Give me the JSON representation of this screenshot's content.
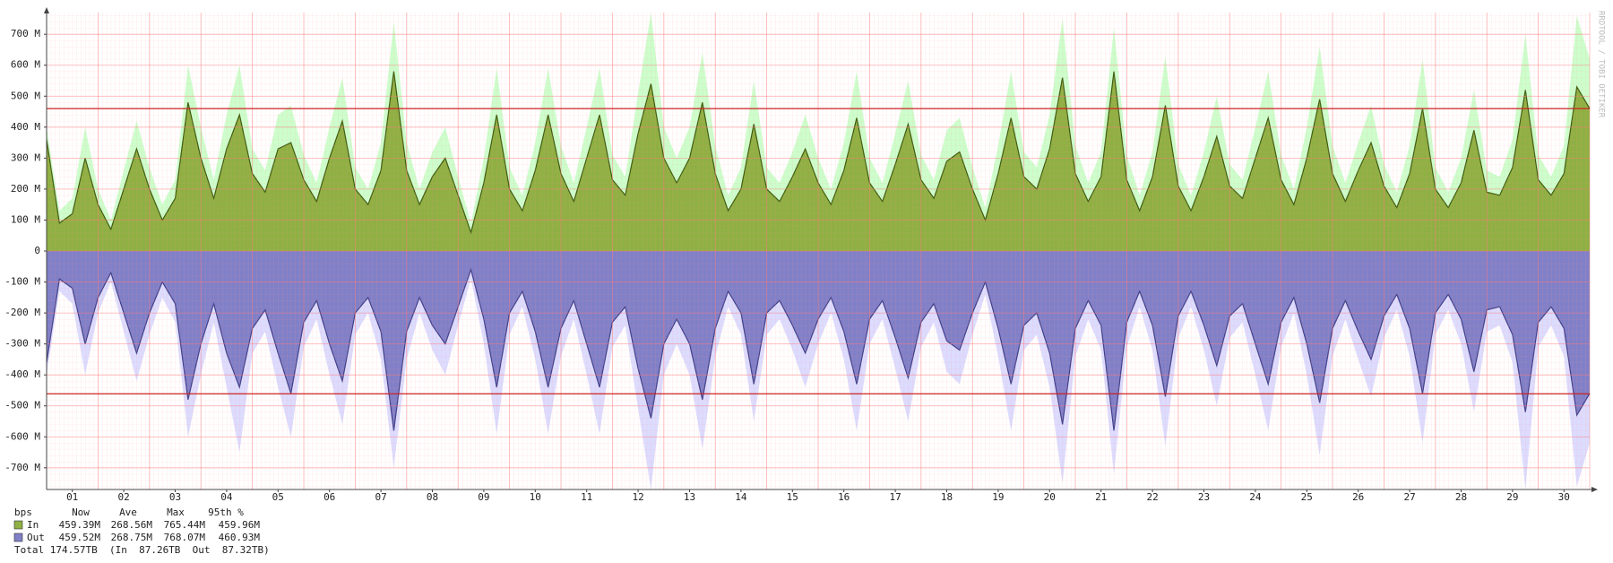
{
  "chart_data": {
    "type": "mirror-area",
    "watermark": "RRDTOOL / TOBI OETIKER",
    "xlim": [
      0,
      30
    ],
    "xticks": [
      {
        "value": 0.5,
        "label": "01"
      },
      {
        "value": 1.5,
        "label": "02"
      },
      {
        "value": 2.5,
        "label": "03"
      },
      {
        "value": 3.5,
        "label": "04"
      },
      {
        "value": 4.5,
        "label": "05"
      },
      {
        "value": 5.5,
        "label": "06"
      },
      {
        "value": 6.5,
        "label": "07"
      },
      {
        "value": 7.5,
        "label": "08"
      },
      {
        "value": 8.5,
        "label": "09"
      },
      {
        "value": 9.5,
        "label": "10"
      },
      {
        "value": 10.5,
        "label": "11"
      },
      {
        "value": 11.5,
        "label": "12"
      },
      {
        "value": 12.5,
        "label": "13"
      },
      {
        "value": 13.5,
        "label": "14"
      },
      {
        "value": 14.5,
        "label": "15"
      },
      {
        "value": 15.5,
        "label": "16"
      },
      {
        "value": 16.5,
        "label": "17"
      },
      {
        "value": 17.5,
        "label": "18"
      },
      {
        "value": 18.5,
        "label": "19"
      },
      {
        "value": 19.5,
        "label": "20"
      },
      {
        "value": 20.5,
        "label": "21"
      },
      {
        "value": 21.5,
        "label": "22"
      },
      {
        "value": 22.5,
        "label": "23"
      },
      {
        "value": 23.5,
        "label": "24"
      },
      {
        "value": 24.5,
        "label": "25"
      },
      {
        "value": 25.5,
        "label": "26"
      },
      {
        "value": 26.5,
        "label": "27"
      },
      {
        "value": 27.5,
        "label": "28"
      },
      {
        "value": 28.5,
        "label": "29"
      },
      {
        "value": 29.5,
        "label": "30"
      }
    ],
    "ylim": [
      -770,
      770
    ],
    "yticks": [
      {
        "value": -700,
        "label": "-700 M"
      },
      {
        "value": -600,
        "label": "-600 M"
      },
      {
        "value": -500,
        "label": "-500 M"
      },
      {
        "value": -400,
        "label": "-400 M"
      },
      {
        "value": -300,
        "label": "-300 M"
      },
      {
        "value": -200,
        "label": "-200 M"
      },
      {
        "value": -100,
        "label": "-100 M"
      },
      0,
      {
        "value": 100,
        "label": "100 M"
      },
      {
        "value": 200,
        "label": "200 M"
      },
      {
        "value": 300,
        "label": "300 M"
      },
      {
        "value": 400,
        "label": "400 M"
      },
      {
        "value": 500,
        "label": "500 M"
      },
      {
        "value": 600,
        "label": "600 M"
      },
      {
        "value": 700,
        "label": "700 M"
      }
    ],
    "grid": true,
    "hrules": [
      459.96,
      -460.93
    ],
    "hrule_color": "#cc2222",
    "x": [
      0,
      0.25,
      0.5,
      0.75,
      1,
      1.25,
      1.5,
      1.75,
      2,
      2.25,
      2.5,
      2.75,
      3,
      3.25,
      3.5,
      3.75,
      4,
      4.25,
      4.5,
      4.75,
      5,
      5.25,
      5.5,
      5.75,
      6,
      6.25,
      6.5,
      6.75,
      7,
      7.25,
      7.5,
      7.75,
      8,
      8.25,
      8.5,
      8.75,
      9,
      9.25,
      9.5,
      9.75,
      10,
      10.25,
      10.5,
      10.75,
      11,
      11.25,
      11.5,
      11.75,
      12,
      12.25,
      12.5,
      12.75,
      13,
      13.25,
      13.5,
      13.75,
      14,
      14.25,
      14.5,
      14.75,
      15,
      15.25,
      15.5,
      15.75,
      16,
      16.25,
      16.5,
      16.75,
      17,
      17.25,
      17.5,
      17.75,
      18,
      18.25,
      18.5,
      18.75,
      19,
      19.25,
      19.5,
      19.75,
      20,
      20.25,
      20.5,
      20.75,
      21,
      21.25,
      21.5,
      21.75,
      22,
      22.25,
      22.5,
      22.75,
      23,
      23.25,
      23.5,
      23.75,
      24,
      24.25,
      24.5,
      24.75,
      25,
      25.25,
      25.5,
      25.75,
      26,
      26.25,
      26.5,
      26.75,
      27,
      27.25,
      27.5,
      27.75,
      28,
      28.25,
      28.5,
      28.75,
      29,
      29.25,
      29.5,
      29.75,
      30
    ],
    "series": [
      {
        "name": "In",
        "color": "#8fb043",
        "line_color": "#3d5c0f",
        "max_color": "#ccffcc",
        "values": [
          360,
          90,
          120,
          300,
          150,
          70,
          200,
          330,
          200,
          100,
          170,
          480,
          300,
          170,
          330,
          440,
          250,
          190,
          330,
          350,
          230,
          160,
          300,
          420,
          200,
          150,
          260,
          580,
          260,
          150,
          240,
          300,
          180,
          60,
          220,
          440,
          200,
          130,
          260,
          440,
          250,
          160,
          300,
          440,
          230,
          180,
          380,
          540,
          300,
          220,
          300,
          480,
          250,
          130,
          200,
          410,
          200,
          160,
          240,
          330,
          220,
          150,
          260,
          430,
          220,
          160,
          280,
          410,
          230,
          170,
          290,
          320,
          200,
          100,
          250,
          430,
          240,
          200,
          330,
          560,
          250,
          160,
          240,
          580,
          230,
          130,
          240,
          470,
          210,
          130,
          240,
          370,
          210,
          170,
          300,
          430,
          230,
          150,
          300,
          490,
          250,
          160,
          260,
          350,
          210,
          140,
          250,
          460,
          200,
          140,
          220,
          390,
          190,
          180,
          270,
          520,
          230,
          180,
          250,
          530,
          460
        ],
        "max_values": [
          400,
          130,
          170,
          400,
          200,
          100,
          260,
          420,
          270,
          150,
          230,
          600,
          400,
          230,
          440,
          600,
          330,
          260,
          440,
          470,
          310,
          220,
          400,
          560,
          270,
          200,
          350,
          740,
          350,
          200,
          320,
          400,
          240,
          90,
          300,
          590,
          270,
          180,
          350,
          590,
          340,
          220,
          400,
          590,
          310,
          240,
          510,
          770,
          400,
          300,
          400,
          640,
          340,
          180,
          270,
          550,
          270,
          220,
          320,
          440,
          300,
          200,
          350,
          580,
          300,
          220,
          380,
          550,
          310,
          230,
          390,
          430,
          270,
          140,
          340,
          580,
          320,
          270,
          440,
          750,
          340,
          220,
          320,
          720,
          310,
          180,
          320,
          630,
          280,
          180,
          320,
          500,
          280,
          230,
          400,
          580,
          310,
          200,
          400,
          660,
          340,
          220,
          350,
          470,
          280,
          190,
          340,
          620,
          270,
          190,
          300,
          520,
          260,
          240,
          360,
          700,
          310,
          240,
          340,
          760,
          620
        ]
      },
      {
        "name": "Out",
        "color": "#8080c8",
        "line_color": "#40408a",
        "max_color": "#dcdcff",
        "values": [
          -360,
          -90,
          -120,
          -300,
          -150,
          -70,
          -200,
          -330,
          -200,
          -100,
          -170,
          -480,
          -300,
          -170,
          -330,
          -440,
          -250,
          -190,
          -330,
          -460,
          -230,
          -160,
          -300,
          -420,
          -200,
          -150,
          -260,
          -580,
          -260,
          -150,
          -240,
          -300,
          -180,
          -60,
          -220,
          -440,
          -200,
          -130,
          -260,
          -440,
          -250,
          -160,
          -300,
          -440,
          -230,
          -180,
          -380,
          -540,
          -300,
          -220,
          -300,
          -480,
          -250,
          -130,
          -200,
          -430,
          -200,
          -160,
          -240,
          -330,
          -220,
          -150,
          -260,
          -430,
          -220,
          -160,
          -280,
          -410,
          -230,
          -170,
          -290,
          -320,
          -200,
          -100,
          -250,
          -430,
          -240,
          -200,
          -330,
          -560,
          -250,
          -160,
          -240,
          -580,
          -230,
          -130,
          -240,
          -470,
          -210,
          -130,
          -240,
          -370,
          -210,
          -170,
          -300,
          -430,
          -230,
          -150,
          -300,
          -490,
          -250,
          -160,
          -260,
          -350,
          -210,
          -140,
          -250,
          -460,
          -200,
          -140,
          -220,
          -390,
          -190,
          -180,
          -270,
          -520,
          -230,
          -180,
          -250,
          -530,
          -460
        ],
        "max_values": [
          -400,
          -130,
          -170,
          -400,
          -200,
          -100,
          -260,
          -420,
          -270,
          -150,
          -230,
          -600,
          -400,
          -230,
          -440,
          -650,
          -330,
          -260,
          -440,
          -600,
          -310,
          -220,
          -400,
          -560,
          -270,
          -200,
          -350,
          -700,
          -350,
          -200,
          -320,
          -400,
          -240,
          -90,
          -300,
          -590,
          -270,
          -180,
          -350,
          -590,
          -340,
          -220,
          -400,
          -590,
          -310,
          -240,
          -510,
          -770,
          -400,
          -300,
          -400,
          -640,
          -340,
          -180,
          -270,
          -550,
          -270,
          -220,
          -320,
          -440,
          -300,
          -200,
          -350,
          -580,
          -300,
          -220,
          -380,
          -550,
          -310,
          -230,
          -390,
          -430,
          -270,
          -140,
          -340,
          -580,
          -320,
          -270,
          -440,
          -750,
          -340,
          -220,
          -320,
          -720,
          -310,
          -180,
          -320,
          -630,
          -280,
          -180,
          -320,
          -500,
          -280,
          -230,
          -400,
          -580,
          -310,
          -200,
          -400,
          -660,
          -340,
          -220,
          -350,
          -470,
          -280,
          -190,
          -340,
          -620,
          -270,
          -190,
          -300,
          -520,
          -260,
          -240,
          -360,
          -770,
          -310,
          -240,
          -340,
          -760,
          -620
        ]
      }
    ],
    "legend_header": [
      "bps",
      "Now",
      "Ave",
      "Max",
      "95th %"
    ],
    "legend_stats": [
      [
        "459.39M",
        "268.56M",
        "765.44M",
        "459.96M"
      ],
      [
        "459.52M",
        "268.75M",
        "768.07M",
        "460.93M"
      ]
    ],
    "total": "Total 174.57TB  (In  87.26TB  Out  87.32TB)"
  }
}
